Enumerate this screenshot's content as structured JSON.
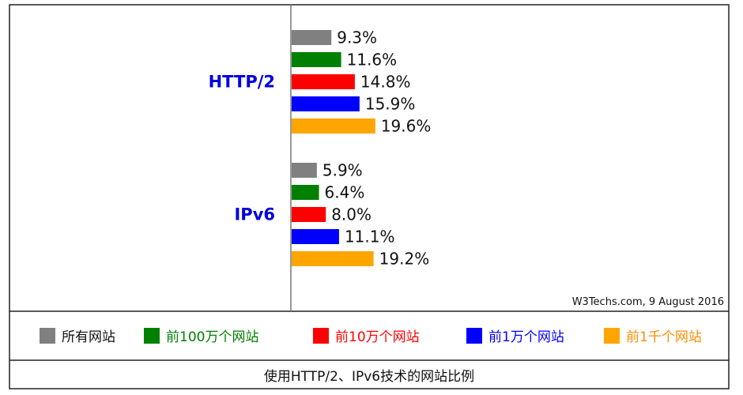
{
  "chart_data": {
    "type": "bar",
    "orientation": "horizontal",
    "categories": [
      "HTTP/2",
      "IPv6"
    ],
    "series": [
      {
        "name": "所有网站",
        "color": "#808080",
        "values": [
          9.3,
          5.9
        ]
      },
      {
        "name": "前100万个网站",
        "color": "#008000",
        "values": [
          11.6,
          6.4
        ]
      },
      {
        "name": "前10万个网站",
        "color": "#ff0000",
        "values": [
          14.8,
          8.0
        ]
      },
      {
        "name": "前1万个网站",
        "color": "#0000ff",
        "values": [
          15.9,
          11.1
        ]
      },
      {
        "name": "前1千个网站",
        "color": "#ffa500",
        "values": [
          19.6,
          19.2
        ]
      }
    ],
    "value_labels": [
      [
        "9.3%",
        "11.6%",
        "14.8%",
        "15.9%",
        "19.6%"
      ],
      [
        "5.9%",
        "6.4%",
        "8.0%",
        "11.1%",
        "19.2%"
      ]
    ],
    "category_label_color": "#0000dd",
    "xlim": [
      0,
      100
    ],
    "grid": false,
    "legend_position": "bottom",
    "source": "W3Techs.com, 9 August 2016",
    "caption": "使用HTTP/2、IPv6技术的网站比例"
  },
  "legend": {
    "items": [
      {
        "label": "所有网站",
        "color": "#808080",
        "text_color": "#111111"
      },
      {
        "label": "前100万个网站",
        "color": "#008000",
        "text_color": "#008000"
      },
      {
        "label": "前10万个网站",
        "color": "#ff0000",
        "text_color": "#ff0000"
      },
      {
        "label": "前1万个网站",
        "color": "#0000ff",
        "text_color": "#0000ff"
      },
      {
        "label": "前1千个网站",
        "color": "#ffa500",
        "text_color": "#ff8c00"
      }
    ]
  }
}
